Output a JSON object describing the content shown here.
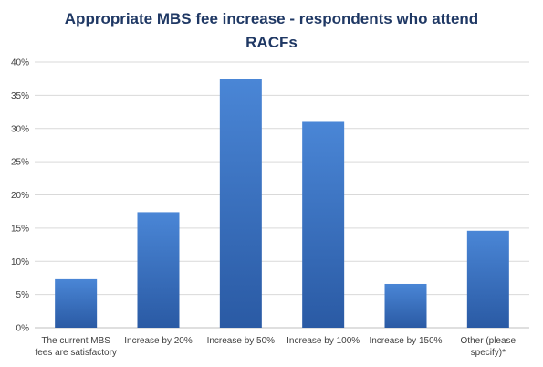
{
  "chart_data": {
    "type": "bar",
    "title_lines": [
      "Appropriate MBS fee increase - respondents who attend",
      "RACFs"
    ],
    "categories": [
      [
        "The current MBS",
        "fees are satisfactory"
      ],
      [
        "Increase by 20%"
      ],
      [
        "Increase by 50%"
      ],
      [
        "Increase by 100%"
      ],
      [
        "Increase by 150%"
      ],
      [
        "Other (please",
        "specify)*"
      ]
    ],
    "values": [
      7.3,
      17.4,
      37.5,
      31.0,
      6.6,
      14.6
    ],
    "ylim": [
      0,
      40
    ],
    "y_ticks": [
      0,
      5,
      10,
      15,
      20,
      25,
      30,
      35,
      40
    ],
    "y_tick_labels": [
      "0%",
      "5%",
      "10%",
      "15%",
      "20%",
      "25%",
      "30%",
      "35%",
      "40%"
    ],
    "grid": true,
    "bar_color_top": "#4a86d6",
    "bar_color_bottom": "#2a5aa4",
    "title_color": "#1f3864"
  }
}
